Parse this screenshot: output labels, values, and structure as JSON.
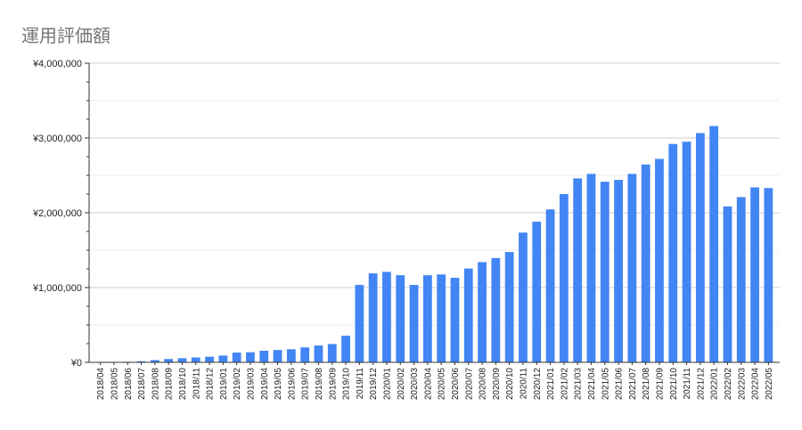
{
  "chart_data": {
    "type": "bar",
    "title": "運用評価額",
    "xlabel": "",
    "ylabel": "",
    "ylim": [
      0,
      4000000
    ],
    "yticks": [
      {
        "value": 0,
        "label": "¥0"
      },
      {
        "value": 1000000,
        "label": "¥1,000,000"
      },
      {
        "value": 2000000,
        "label": "¥2,000,000"
      },
      {
        "value": 3000000,
        "label": "¥3,000,000"
      },
      {
        "value": 4000000,
        "label": "¥4,000,000"
      }
    ],
    "grid": true,
    "bar_color": "#4285f4",
    "categories": [
      "2018/04",
      "2018/05",
      "2018/06",
      "2018/07",
      "2018/08",
      "2018/09",
      "2018/10",
      "2018/11",
      "2018/12",
      "2019/01",
      "2019/02",
      "2019/03",
      "2019/04",
      "2019/05",
      "2019/06",
      "2019/07",
      "2019/08",
      "2019/09",
      "2019/10",
      "2019/11",
      "2019/12",
      "2020/01",
      "2020/02",
      "2020/03",
      "2020/04",
      "2020/05",
      "2020/06",
      "2020/07",
      "2020/08",
      "2020/09",
      "2020/10",
      "2020/11",
      "2020/12",
      "2021/01",
      "2021/02",
      "2021/03",
      "2021/04",
      "2021/05",
      "2021/06",
      "2021/07",
      "2021/08",
      "2021/09",
      "2021/10",
      "2021/11",
      "2021/12",
      "2022/01",
      "2022/02",
      "2022/03",
      "2022/04",
      "2022/05"
    ],
    "values": [
      3000,
      5000,
      8000,
      15000,
      30000,
      45000,
      55000,
      65000,
      75000,
      90000,
      130000,
      135000,
      155000,
      165000,
      175000,
      200000,
      225000,
      245000,
      355000,
      1035000,
      1190000,
      1210000,
      1165000,
      1035000,
      1165000,
      1175000,
      1130000,
      1255000,
      1340000,
      1395000,
      1475000,
      1735000,
      1880000,
      2045000,
      2250000,
      2460000,
      2520000,
      2415000,
      2440000,
      2520000,
      2645000,
      2720000,
      2920000,
      2950000,
      3065000,
      3160000,
      2085000,
      2210000,
      2340000,
      2330000
    ]
  }
}
